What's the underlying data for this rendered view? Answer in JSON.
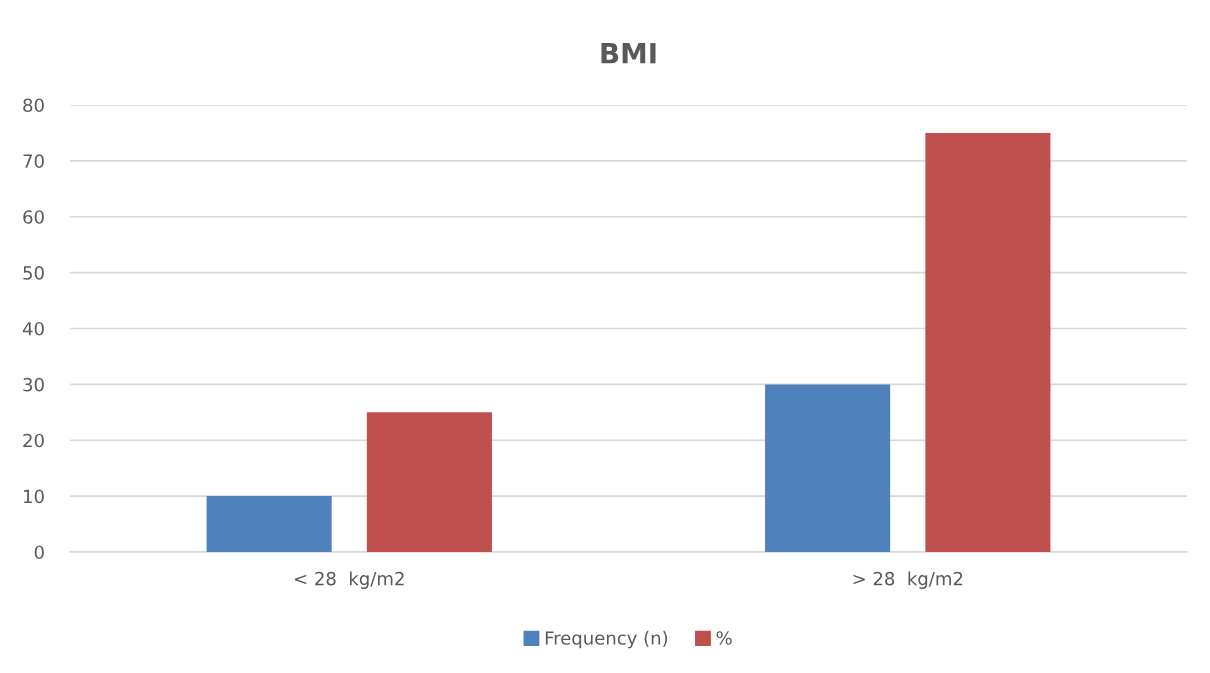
{
  "chart_data": {
    "type": "bar",
    "title": "BMI",
    "categories": [
      "< 28  kg/m2",
      "> 28  kg/m2"
    ],
    "series": [
      {
        "name": "Frequency (n)",
        "color": "#4f81bd",
        "values": [
          10,
          30
        ]
      },
      {
        "name": "%",
        "color": "#c0504d",
        "values": [
          25,
          75
        ]
      }
    ],
    "ylim": [
      0,
      80
    ],
    "yticks": [
      0,
      10,
      20,
      30,
      40,
      50,
      60,
      70,
      80
    ],
    "grid": "y",
    "legend": "bottom"
  }
}
